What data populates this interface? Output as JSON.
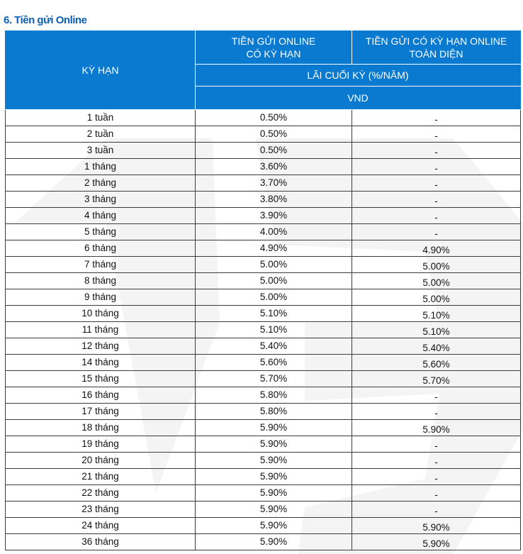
{
  "title": "6. Tiền gửi Online",
  "header": {
    "term": "KỲ HẠN",
    "col1_line1": "TIỀN GỬI ONLINE",
    "col1_line2": "CÓ KỲ HẠN",
    "col2_line1": "TIỀN GỬI CÓ KỲ HẠN ONLINE",
    "col2_line2": "TOÀN DIỆN",
    "interest": "LÃI CUỐI KỲ (%/NĂM)",
    "currency": "VND"
  },
  "rows": [
    {
      "term": "1 tuần",
      "online": "0.50%",
      "comprehensive": "-"
    },
    {
      "term": "2 tuần",
      "online": "0.50%",
      "comprehensive": "-"
    },
    {
      "term": "3 tuần",
      "online": "0.50%",
      "comprehensive": "-"
    },
    {
      "term": "1 tháng",
      "online": "3.60%",
      "comprehensive": "-"
    },
    {
      "term": "2 tháng",
      "online": "3.70%",
      "comprehensive": "-"
    },
    {
      "term": "3 tháng",
      "online": "3.80%",
      "comprehensive": "-"
    },
    {
      "term": "4 tháng",
      "online": "3.90%",
      "comprehensive": "-"
    },
    {
      "term": "5 tháng",
      "online": "4.00%",
      "comprehensive": "-"
    },
    {
      "term": "6 tháng",
      "online": "4.90%",
      "comprehensive": "4.90%"
    },
    {
      "term": "7 tháng",
      "online": "5.00%",
      "comprehensive": "5.00%"
    },
    {
      "term": "8 tháng",
      "online": "5.00%",
      "comprehensive": "5.00%"
    },
    {
      "term": "9 tháng",
      "online": "5.00%",
      "comprehensive": "5.00%"
    },
    {
      "term": "10 tháng",
      "online": "5.10%",
      "comprehensive": "5.10%"
    },
    {
      "term": "11 tháng",
      "online": "5.10%",
      "comprehensive": "5.10%"
    },
    {
      "term": "12 tháng",
      "online": "5.40%",
      "comprehensive": "5.40%"
    },
    {
      "term": "14 tháng",
      "online": "5.60%",
      "comprehensive": "5.60%"
    },
    {
      "term": "15 tháng",
      "online": "5.70%",
      "comprehensive": "5.70%"
    },
    {
      "term": "16 tháng",
      "online": "5.80%",
      "comprehensive": "-"
    },
    {
      "term": "17 tháng",
      "online": "5.80%",
      "comprehensive": "-"
    },
    {
      "term": "18 tháng",
      "online": "5.90%",
      "comprehensive": "5.90%"
    },
    {
      "term": "19 tháng",
      "online": "5.90%",
      "comprehensive": "-"
    },
    {
      "term": "20 tháng",
      "online": "5.90%",
      "comprehensive": "-"
    },
    {
      "term": "21 tháng",
      "online": "5.90%",
      "comprehensive": "-"
    },
    {
      "term": "22 tháng",
      "online": "5.90%",
      "comprehensive": "-"
    },
    {
      "term": "23 tháng",
      "online": "5.90%",
      "comprehensive": "-"
    },
    {
      "term": "24 tháng",
      "online": "5.90%",
      "comprehensive": "5.90%"
    },
    {
      "term": "36 tháng",
      "online": "5.90%",
      "comprehensive": "5.90%"
    }
  ]
}
